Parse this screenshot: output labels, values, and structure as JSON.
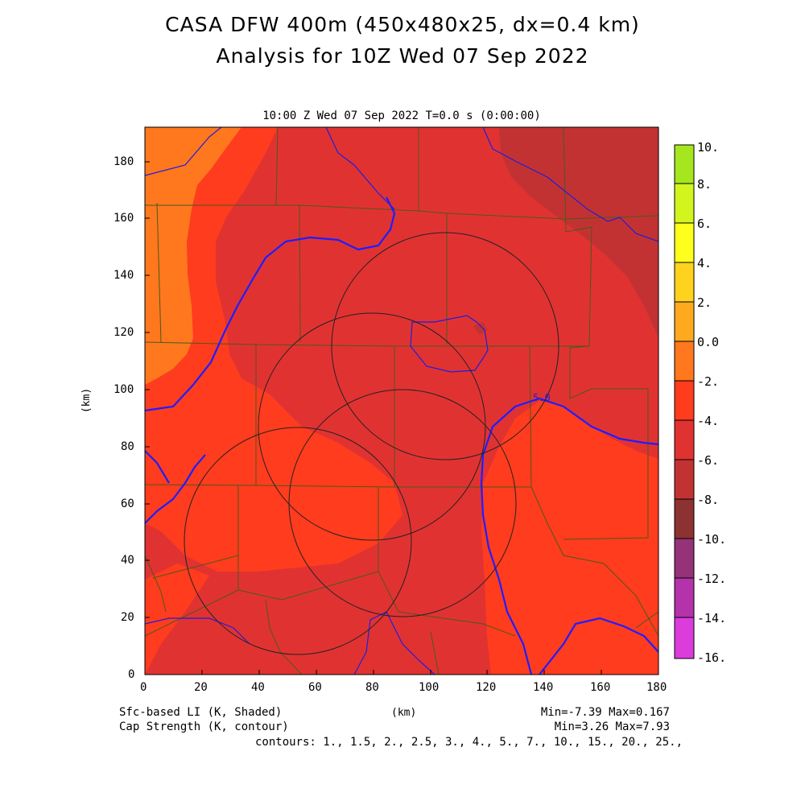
{
  "title_line1": "CASA DFW 400m (450x480x25, dx=0.4 km)",
  "title_line2": "Analysis for 10Z Wed 07 Sep 2022",
  "subtitle": "10:00 Z Wed 07 Sep 2022   T=0.0 s (0:00:00)",
  "x_axis": {
    "label": "(km)",
    "ticks": [
      "0",
      "20",
      "40",
      "60",
      "80",
      "100",
      "120",
      "140",
      "160",
      "180"
    ],
    "range": [
      0,
      180
    ]
  },
  "y_axis": {
    "label": "(km)",
    "ticks": [
      "0",
      "20",
      "40",
      "60",
      "80",
      "100",
      "120",
      "140",
      "160",
      "180"
    ],
    "range": [
      0,
      192
    ]
  },
  "footer": {
    "shaded_label": "Sfc-based LI (K, Shaded)",
    "contour_label": "Cap Strength (K, contour)",
    "minmax_shaded": "Min=-7.39 Max=0.167",
    "minmax_contour": "Min=3.26 Max=7.93",
    "contours": "contours: 1., 1.5, 2., 2.5, 3., 4., 5., 7., 10., 15., 20., 25.,"
  },
  "contour_label_on_map": "5.0",
  "colorbar": {
    "labels": [
      "10.",
      "8.",
      "6.",
      "4.",
      "2.",
      "0.0",
      "-2.",
      "-4.",
      "-6.",
      "-8.",
      "-10.",
      "-12.",
      "-14.",
      "-16."
    ],
    "colors": [
      "#a6e61e",
      "#d2f51e",
      "#ffff1e",
      "#ffd21e",
      "#ffaa1e",
      "#ff781e",
      "#ff3c1e",
      "#e13232",
      "#c33232",
      "#8c3232",
      "#963278",
      "#b432aa",
      "#c832c8",
      "#dc3cdc"
    ]
  },
  "shading_colors": {
    "orange": "#ff781e",
    "red_orange": "#ff3c1e",
    "red": "#e13232",
    "dark_red": "#c33232"
  },
  "radar_rings": [
    "radar-ring-1",
    "radar-ring-2",
    "radar-ring-3",
    "radar-ring-4"
  ]
}
